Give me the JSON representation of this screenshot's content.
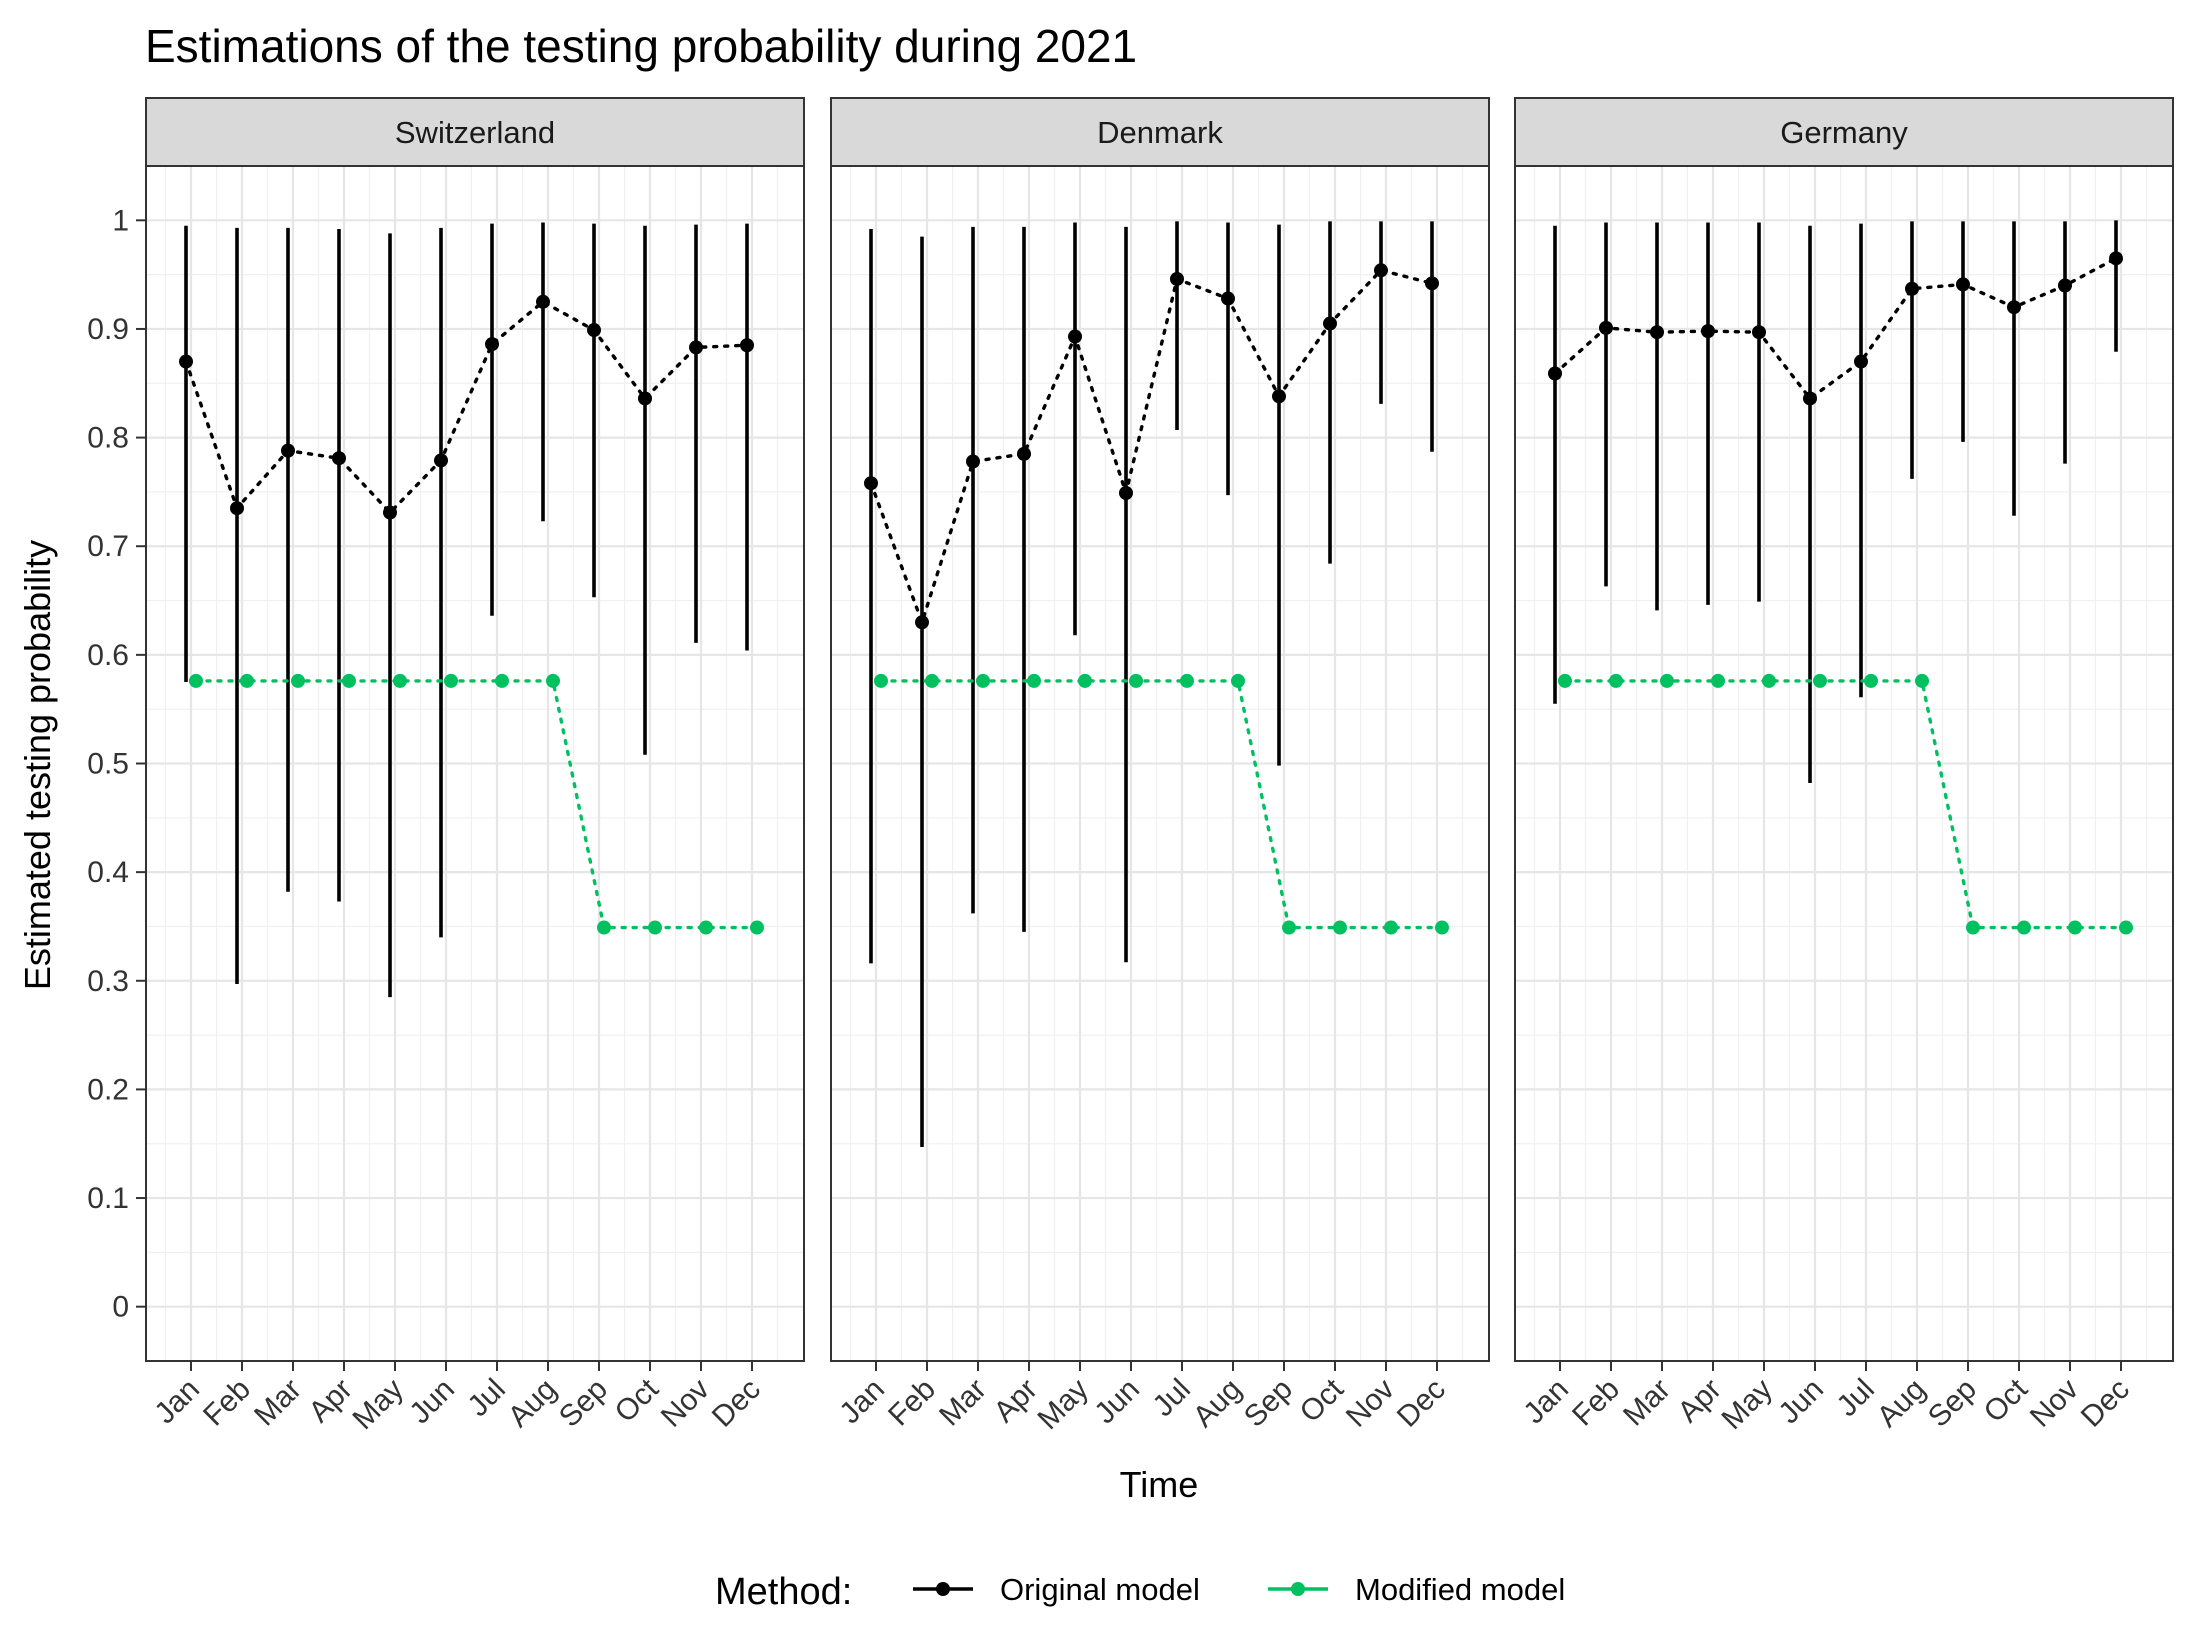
{
  "title": "Estimations of the testing probability during 2021",
  "legend": {
    "title": "Method:",
    "items": [
      {
        "label": "Original model",
        "color": "#000000"
      },
      {
        "label": "Modified model",
        "color": "#00c060"
      }
    ]
  },
  "chart_data": {
    "type": "scatter",
    "title": "Estimations of the testing probability during 2021",
    "xlabel": "Time",
    "ylabel": "Estimated testing probability",
    "ylim": [
      -0.05,
      1.05
    ],
    "yticks": [
      "0",
      "0.1",
      "0.2",
      "0.3",
      "0.4",
      "0.5",
      "0.6",
      "0.7",
      "0.8",
      "0.9",
      "1"
    ],
    "categories": [
      "Jan",
      "Feb",
      "Mar",
      "Apr",
      "May",
      "Jun",
      "Jul",
      "Aug",
      "Sep",
      "Oct",
      "Nov",
      "Dec"
    ],
    "grid": true,
    "legend_position": "bottom",
    "panels": [
      {
        "name": "Switzerland",
        "series": [
          {
            "name": "Original model",
            "color": "#000000",
            "values": [
              0.87,
              0.735,
              0.788,
              0.781,
              0.731,
              0.779,
              0.886,
              0.925,
              0.899,
              0.836,
              0.883,
              0.885
            ],
            "lower": [
              0.575,
              0.297,
              0.382,
              0.373,
              0.285,
              0.34,
              0.636,
              0.723,
              0.653,
              0.508,
              0.611,
              0.604
            ],
            "upper": [
              0.995,
              0.993,
              0.993,
              0.992,
              0.988,
              0.993,
              0.997,
              0.998,
              0.997,
              0.995,
              0.996,
              0.997
            ]
          },
          {
            "name": "Modified model",
            "color": "#00c060",
            "values": [
              0.576,
              0.576,
              0.576,
              0.576,
              0.576,
              0.576,
              0.576,
              0.576,
              0.349,
              0.349,
              0.349,
              0.349
            ]
          }
        ]
      },
      {
        "name": "Denmark",
        "series": [
          {
            "name": "Original model",
            "color": "#000000",
            "values": [
              0.758,
              0.63,
              0.778,
              0.785,
              0.893,
              0.749,
              0.946,
              0.928,
              0.838,
              0.905,
              0.954,
              0.942
            ],
            "lower": [
              0.316,
              0.147,
              0.362,
              0.345,
              0.618,
              0.317,
              0.807,
              0.747,
              0.498,
              0.684,
              0.831,
              0.787
            ],
            "upper": [
              0.992,
              0.985,
              0.994,
              0.994,
              0.998,
              0.994,
              0.999,
              0.998,
              0.996,
              0.999,
              0.999,
              0.999
            ]
          },
          {
            "name": "Modified model",
            "color": "#00c060",
            "values": [
              0.576,
              0.576,
              0.576,
              0.576,
              0.576,
              0.576,
              0.576,
              0.576,
              0.349,
              0.349,
              0.349,
              0.349
            ]
          }
        ]
      },
      {
        "name": "Germany",
        "series": [
          {
            "name": "Original model",
            "color": "#000000",
            "values": [
              0.859,
              0.901,
              0.897,
              0.898,
              0.897,
              0.836,
              0.87,
              0.937,
              0.941,
              0.92,
              0.94,
              0.965
            ],
            "lower": [
              0.555,
              0.663,
              0.641,
              0.646,
              0.649,
              0.482,
              0.561,
              0.762,
              0.796,
              0.728,
              0.776,
              0.879
            ],
            "upper": [
              0.995,
              0.998,
              0.998,
              0.998,
              0.998,
              0.995,
              0.997,
              0.999,
              0.999,
              0.999,
              0.999,
              1.0
            ]
          },
          {
            "name": "Modified model",
            "color": "#00c060",
            "values": [
              0.576,
              0.576,
              0.576,
              0.576,
              0.576,
              0.576,
              0.576,
              0.576,
              0.349,
              0.349,
              0.349,
              0.349
            ]
          }
        ]
      }
    ]
  }
}
